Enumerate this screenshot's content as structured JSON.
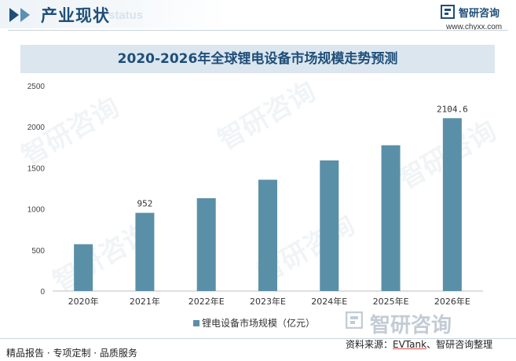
{
  "header": {
    "title": "产业现状",
    "watermark_text": "status",
    "brand_name": "智研咨询",
    "brand_url": "www.chyxx.com"
  },
  "watermark_text": "智研咨询",
  "chart_data": {
    "type": "bar",
    "title": "2020-2026年全球锂电设备市场规模走势预测",
    "categories": [
      "2020年",
      "2021年",
      "2022年E",
      "2023年E",
      "2024年E",
      "2025年E",
      "2026年E"
    ],
    "series": [
      {
        "name": "锂电设备市场规模（亿元）",
        "values": [
          570,
          952,
          1130,
          1355,
          1590,
          1775,
          2104.6
        ]
      }
    ],
    "data_labels": {
      "2021年": "952",
      "2026年E": "2104.6"
    },
    "yticks": [
      "0",
      "500",
      "1000",
      "1500",
      "2000",
      "2500"
    ],
    "ylim": [
      0,
      2500
    ],
    "legend_position": "bottom",
    "grid": false,
    "color": "#5a8fa8"
  },
  "footer": {
    "left": "精品报告 · 专项定制 · 品质服务",
    "source_prefix": "资料来源：",
    "source_underlined": "EVTank",
    "source_suffix": "、智研咨询整理"
  }
}
